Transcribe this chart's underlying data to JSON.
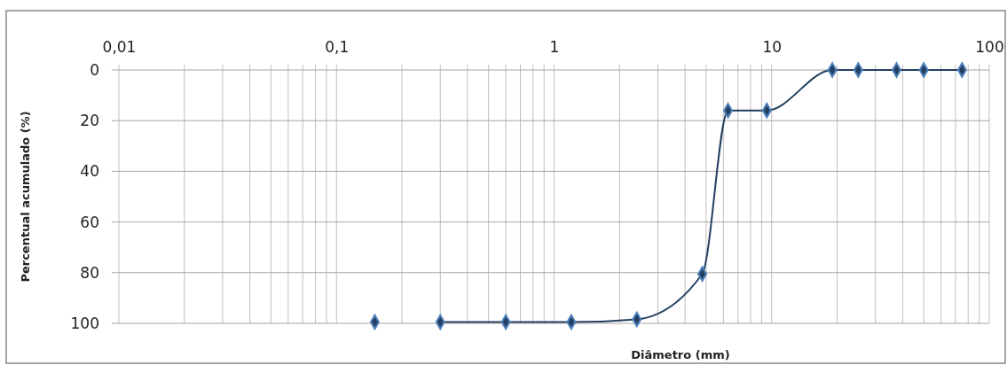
{
  "chart_data": {
    "type": "line",
    "xlabel": "Diâmetro (mm)",
    "ylabel": "Percentual acumulado (%)",
    "log": "x",
    "grid": true,
    "marker": "diamond",
    "line_style": "solid",
    "xlim": [
      0.01,
      100
    ],
    "xticks": [
      {
        "value": 0.01,
        "label": "0,01"
      },
      {
        "value": 0.1,
        "label": "0,1"
      },
      1,
      10,
      100
    ],
    "ylim": [
      100,
      0
    ],
    "yticks": [
      0,
      20,
      40,
      60,
      80,
      100
    ],
    "series": [
      {
        "type": "scatter",
        "color": "#243f60",
        "x": [
          0.15
        ],
        "values": [
          99.5
        ]
      },
      {
        "color": "#243f60",
        "x": [
          0.3,
          0.6,
          1.2,
          2.4,
          4.8,
          6.3,
          9.5,
          19,
          25,
          37.5,
          50,
          75
        ],
        "values": [
          99.5,
          99.5,
          99.5,
          98.4,
          80.5,
          16,
          16,
          0,
          0,
          0,
          0,
          0
        ]
      }
    ]
  }
}
